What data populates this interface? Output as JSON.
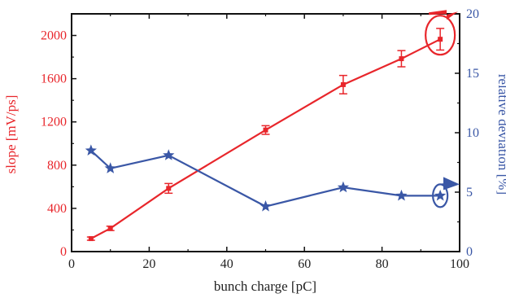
{
  "chart_data": {
    "type": "line",
    "xlabel": "bunch charge [pC]",
    "ylabel": "slope [mV/ps]",
    "y2label": "relative deviation [%]",
    "xlim": [
      0,
      100
    ],
    "ylim": [
      0,
      2200
    ],
    "y2lim": [
      0,
      20
    ],
    "xticks": [
      "0",
      "20",
      "40",
      "60",
      "80",
      "100"
    ],
    "yticks": [
      "0",
      "400",
      "800",
      "1200",
      "1600",
      "2000"
    ],
    "y2ticks": [
      "0",
      "5",
      "10",
      "15",
      "20"
    ],
    "grid": false,
    "series": [
      {
        "axis": "left",
        "color": "#e8262b",
        "marker": "square",
        "x": [
          5,
          10,
          25,
          50,
          70,
          85,
          95
        ],
        "y": [
          120,
          215,
          585,
          1125,
          1545,
          1785,
          1965
        ],
        "err": [
          15,
          20,
          45,
          40,
          85,
          75,
          100
        ]
      },
      {
        "axis": "right",
        "color": "#3a57a6",
        "marker": "star",
        "x": [
          5,
          10,
          25,
          50,
          70,
          85,
          95
        ],
        "y": [
          8.5,
          7.0,
          8.1,
          3.8,
          5.4,
          4.7,
          4.7
        ]
      }
    ],
    "annotations": [
      {
        "type": "ellipse-arrow",
        "color": "#e8262b",
        "points_to": "left-axis"
      },
      {
        "type": "ellipse-arrow",
        "color": "#3a57a6",
        "points_to": "right-axis"
      }
    ]
  }
}
